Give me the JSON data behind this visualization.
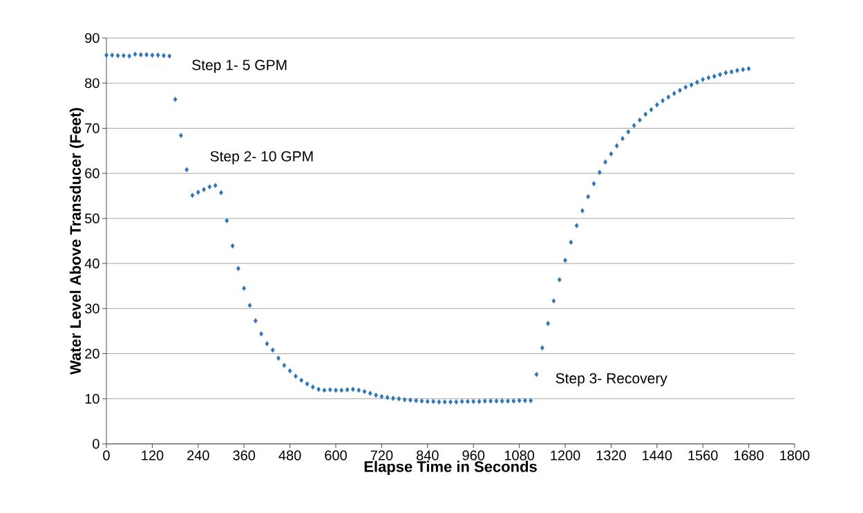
{
  "chart_data": {
    "type": "scatter",
    "xlabel": "Elapse Time in Seconds",
    "ylabel": "Water Level Above Transducer (Feet)",
    "x": [
      0,
      15,
      30,
      45,
      60,
      75,
      90,
      105,
      120,
      135,
      150,
      165,
      180,
      195,
      210,
      225,
      240,
      255,
      270,
      285,
      300,
      315,
      330,
      345,
      360,
      375,
      390,
      405,
      420,
      435,
      450,
      465,
      480,
      495,
      510,
      525,
      540,
      555,
      570,
      585,
      600,
      615,
      630,
      645,
      660,
      675,
      690,
      705,
      720,
      735,
      750,
      765,
      780,
      795,
      810,
      825,
      840,
      855,
      870,
      885,
      900,
      915,
      930,
      945,
      960,
      975,
      990,
      1005,
      1020,
      1035,
      1050,
      1065,
      1080,
      1095,
      1110,
      1125,
      1140,
      1155,
      1170,
      1185,
      1200,
      1215,
      1230,
      1245,
      1260,
      1275,
      1290,
      1305,
      1320,
      1335,
      1350,
      1365,
      1380,
      1395,
      1410,
      1425,
      1440,
      1455,
      1470,
      1485,
      1500,
      1515,
      1530,
      1545,
      1560,
      1575,
      1590,
      1605,
      1620,
      1635,
      1650,
      1665,
      1680
    ],
    "values": [
      86.2,
      86.2,
      86.1,
      86.1,
      86.0,
      86.4,
      86.3,
      86.3,
      86.2,
      86.2,
      86.1,
      86.0,
      76.4,
      68.4,
      60.8,
      55.1,
      55.8,
      56.4,
      57.0,
      57.3,
      55.7,
      49.5,
      43.9,
      38.9,
      34.5,
      30.7,
      27.3,
      24.4,
      22.2,
      20.8,
      19.0,
      17.4,
      16.2,
      15.0,
      14.1,
      13.3,
      12.6,
      12.1,
      11.9,
      12.0,
      11.9,
      11.9,
      12.0,
      12.1,
      11.9,
      11.6,
      11.2,
      10.8,
      10.5,
      10.3,
      10.1,
      10.0,
      9.8,
      9.7,
      9.6,
      9.5,
      9.4,
      9.4,
      9.3,
      9.3,
      9.3,
      9.3,
      9.4,
      9.4,
      9.4,
      9.4,
      9.5,
      9.5,
      9.5,
      9.5,
      9.5,
      9.5,
      9.6,
      9.6,
      9.6,
      15.4,
      21.3,
      26.7,
      31.7,
      36.4,
      40.7,
      44.7,
      48.4,
      51.7,
      54.8,
      57.7,
      60.2,
      62.5,
      64.3,
      66.1,
      67.7,
      69.2,
      70.6,
      71.8,
      73.1,
      74.1,
      75.2,
      76.1,
      76.9,
      77.7,
      78.4,
      79.1,
      79.6,
      80.2,
      80.8,
      81.2,
      81.5,
      81.9,
      82.3,
      82.5,
      82.8,
      83.0,
      83.2
    ],
    "color": "#2e75b6",
    "marker": "diamond",
    "grid": "y",
    "xlim": [
      0,
      1800
    ],
    "xticks": [
      0,
      120,
      240,
      360,
      480,
      600,
      720,
      840,
      960,
      1080,
      1200,
      1320,
      1440,
      1560,
      1680,
      1800
    ],
    "ylim": [
      0,
      90
    ],
    "yticks": [
      0,
      10,
      20,
      30,
      40,
      50,
      60,
      70,
      80,
      90
    ],
    "annotations": [
      "Step 1- 5 GPM",
      "Step 2- 10 GPM",
      "Step 3- Recovery"
    ]
  }
}
